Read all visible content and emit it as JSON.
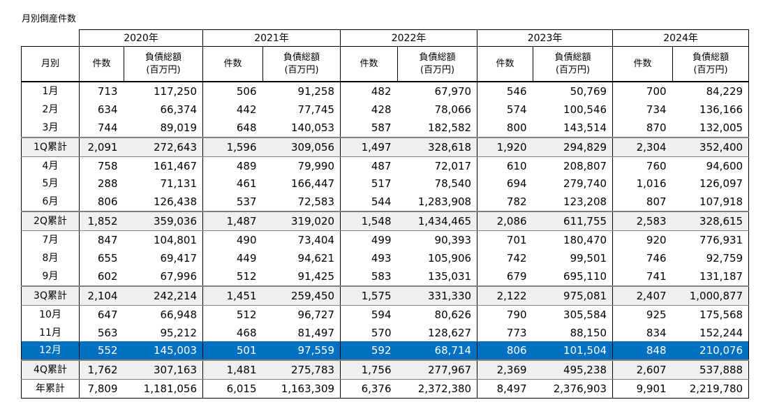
{
  "title": "月別倒産件数",
  "header": {
    "month_label": "月別",
    "years": [
      "2020年",
      "2021年",
      "2022年",
      "2023年",
      "2024年"
    ],
    "count_label": "件数",
    "debt_label": "負債総額",
    "debt_unit": "(百万円)"
  },
  "colors": {
    "highlight_bg": "#0070c0",
    "highlight_text": "#ffffff",
    "subtotal_bg": "#efefef"
  },
  "rows": [
    {
      "label": "1月",
      "cells": [
        "713",
        "117,250",
        "506",
        "91,258",
        "482",
        "67,970",
        "546",
        "50,769",
        "700",
        "84,229"
      ]
    },
    {
      "label": "2月",
      "cells": [
        "634",
        "66,374",
        "442",
        "77,745",
        "428",
        "78,066",
        "574",
        "100,546",
        "734",
        "136,166"
      ]
    },
    {
      "label": "3月",
      "cells": [
        "744",
        "89,019",
        "648",
        "140,053",
        "587",
        "182,582",
        "800",
        "143,514",
        "870",
        "132,005"
      ]
    },
    {
      "label": "1Q累計",
      "subtotal": true,
      "cells": [
        "2,091",
        "272,643",
        "1,596",
        "309,056",
        "1,497",
        "328,618",
        "1,920",
        "294,829",
        "2,304",
        "352,400"
      ]
    },
    {
      "label": "4月",
      "cells": [
        "758",
        "161,467",
        "489",
        "79,990",
        "487",
        "72,017",
        "610",
        "208,807",
        "760",
        "94,600"
      ]
    },
    {
      "label": "5月",
      "cells": [
        "288",
        "71,131",
        "461",
        "166,447",
        "517",
        "78,540",
        "694",
        "279,740",
        "1,016",
        "126,097"
      ]
    },
    {
      "label": "6月",
      "cells": [
        "806",
        "126,438",
        "537",
        "72,583",
        "544",
        "1,283,908",
        "782",
        "123,208",
        "807",
        "107,918"
      ]
    },
    {
      "label": "2Q累計",
      "subtotal": true,
      "cells": [
        "1,852",
        "359,036",
        "1,487",
        "319,020",
        "1,548",
        "1,434,465",
        "2,086",
        "611,755",
        "2,583",
        "328,615"
      ]
    },
    {
      "label": "7月",
      "cells": [
        "847",
        "104,801",
        "490",
        "73,404",
        "499",
        "90,393",
        "701",
        "180,470",
        "920",
        "776,931"
      ]
    },
    {
      "label": "8月",
      "cells": [
        "655",
        "69,417",
        "449",
        "94,621",
        "493",
        "105,906",
        "742",
        "99,501",
        "746",
        "92,759"
      ]
    },
    {
      "label": "9月",
      "cells": [
        "602",
        "67,996",
        "512",
        "91,425",
        "583",
        "135,031",
        "679",
        "695,110",
        "741",
        "131,187"
      ]
    },
    {
      "label": "3Q累計",
      "subtotal": true,
      "cells": [
        "2,104",
        "242,214",
        "1,451",
        "259,450",
        "1,575",
        "331,330",
        "2,122",
        "975,081",
        "2,407",
        "1,000,877"
      ]
    },
    {
      "label": "10月",
      "cells": [
        "647",
        "66,948",
        "512",
        "96,727",
        "594",
        "80,626",
        "790",
        "305,584",
        "925",
        "175,568"
      ]
    },
    {
      "label": "11月",
      "cells": [
        "563",
        "95,212",
        "468",
        "81,497",
        "570",
        "128,627",
        "773",
        "88,150",
        "834",
        "152,244"
      ]
    },
    {
      "label": "12月",
      "highlight": true,
      "cells": [
        "552",
        "145,003",
        "501",
        "97,559",
        "592",
        "68,714",
        "806",
        "101,504",
        "848",
        "210,076"
      ]
    },
    {
      "label": "4Q累計",
      "subtotal": true,
      "cells": [
        "1,762",
        "307,163",
        "1,481",
        "275,783",
        "1,756",
        "277,967",
        "2,369",
        "495,238",
        "2,607",
        "537,888"
      ]
    },
    {
      "label": "年累計",
      "cells": [
        "7,809",
        "1,181,056",
        "6,015",
        "1,163,309",
        "6,376",
        "2,372,380",
        "8,497",
        "2,376,903",
        "9,901",
        "2,219,780"
      ]
    }
  ]
}
